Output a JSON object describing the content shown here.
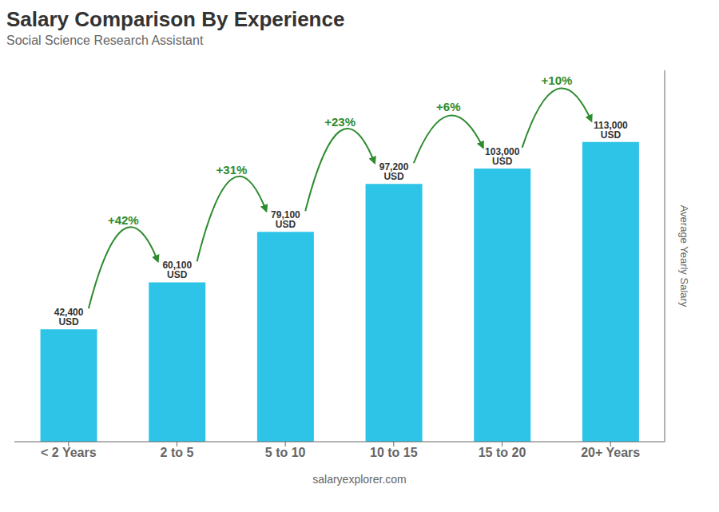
{
  "chart_data": {
    "type": "bar",
    "title": "Salary Comparison By Experience",
    "subtitle": "Social Science Research Assistant",
    "categories": [
      "< 2 Years",
      "2 to 5",
      "5 to 10",
      "10 to 15",
      "15 to 20",
      "20+ Years"
    ],
    "values": [
      42400,
      60100,
      79100,
      97200,
      103000,
      113000
    ],
    "value_labels": [
      "42,400 USD",
      "60,100 USD",
      "79,100 USD",
      "97,200 USD",
      "103,000 USD",
      "113,000 USD"
    ],
    "data_labels": true,
    "annotations": [
      "+42%",
      "+31%",
      "+23%",
      "+6%",
      "+10%"
    ],
    "color": "#2ec4e8",
    "ylabel": "Average Yearly Salary",
    "footer": "salaryexplorer.com",
    "ylim": [
      0,
      140000
    ],
    "grid": false,
    "tick_labels": "x"
  }
}
